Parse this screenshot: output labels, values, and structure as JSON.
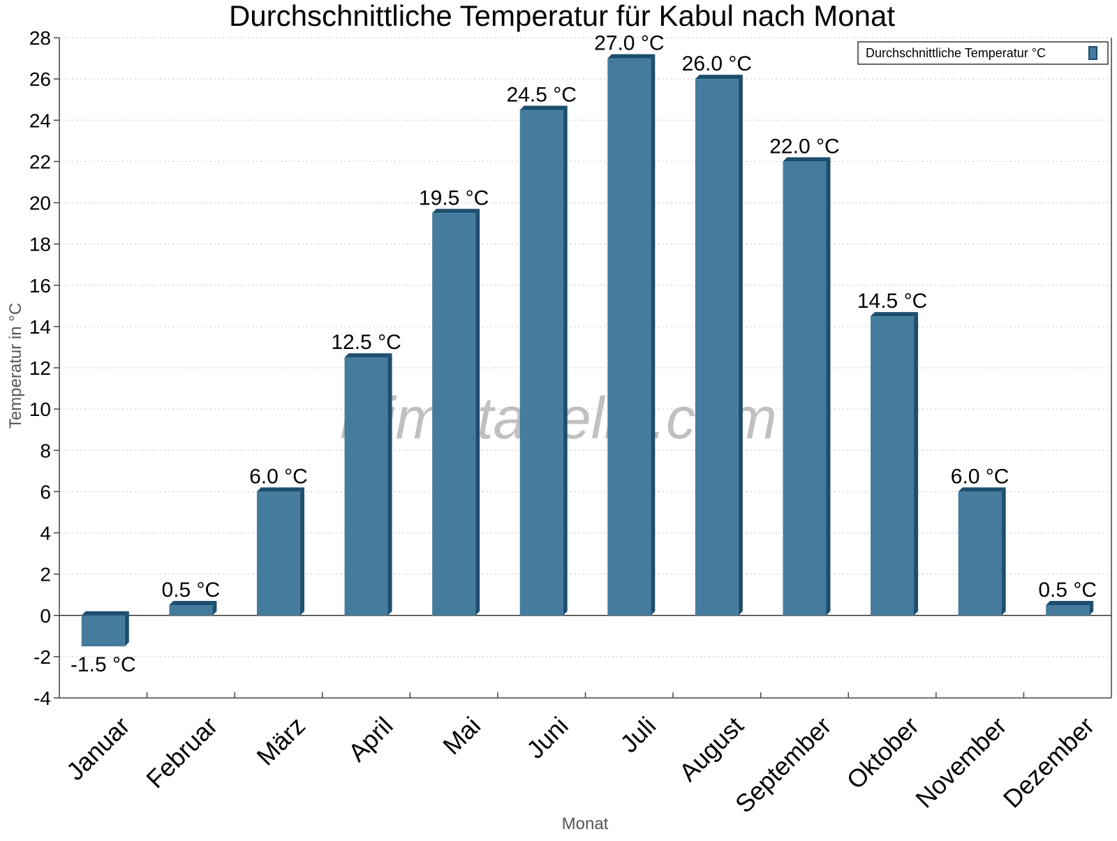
{
  "chart_data": {
    "type": "bar",
    "title": "Durchschnittliche Temperatur für Kabul nach Monat",
    "xlabel": "Monat",
    "ylabel": "Temperatur in °C",
    "categories": [
      "Januar",
      "Februar",
      "März",
      "April",
      "Mai",
      "Juni",
      "Juli",
      "August",
      "September",
      "Oktober",
      "November",
      "Dezember"
    ],
    "series": [
      {
        "name": "Durchschnittliche Temperatur °C",
        "values": [
          -1.5,
          0.5,
          6.0,
          12.5,
          19.5,
          24.5,
          27.0,
          26.0,
          22.0,
          14.5,
          6.0,
          0.5
        ],
        "data_labels": [
          "-1.5 °C",
          "0.5 °C",
          "6.0 °C",
          "12.5 °C",
          "19.5 °C",
          "24.5 °C",
          "27.0 °C",
          "26.0 °C",
          "22.0 °C",
          "14.5 °C",
          "6.0 °C",
          "0.5 °C"
        ]
      }
    ],
    "ylim": [
      -4,
      28
    ],
    "yticks": [
      -4,
      -2,
      0,
      2,
      4,
      6,
      8,
      10,
      12,
      14,
      16,
      18,
      20,
      22,
      24,
      26,
      28
    ],
    "grid": "horizontal-dotted",
    "legend": "top-right",
    "watermark": "klimatabelle.com",
    "colors": {
      "bar_fill": "#457b9d",
      "bar_shade": "#1d4e6e",
      "grid": "#cccccc",
      "axis": "#444444"
    }
  }
}
